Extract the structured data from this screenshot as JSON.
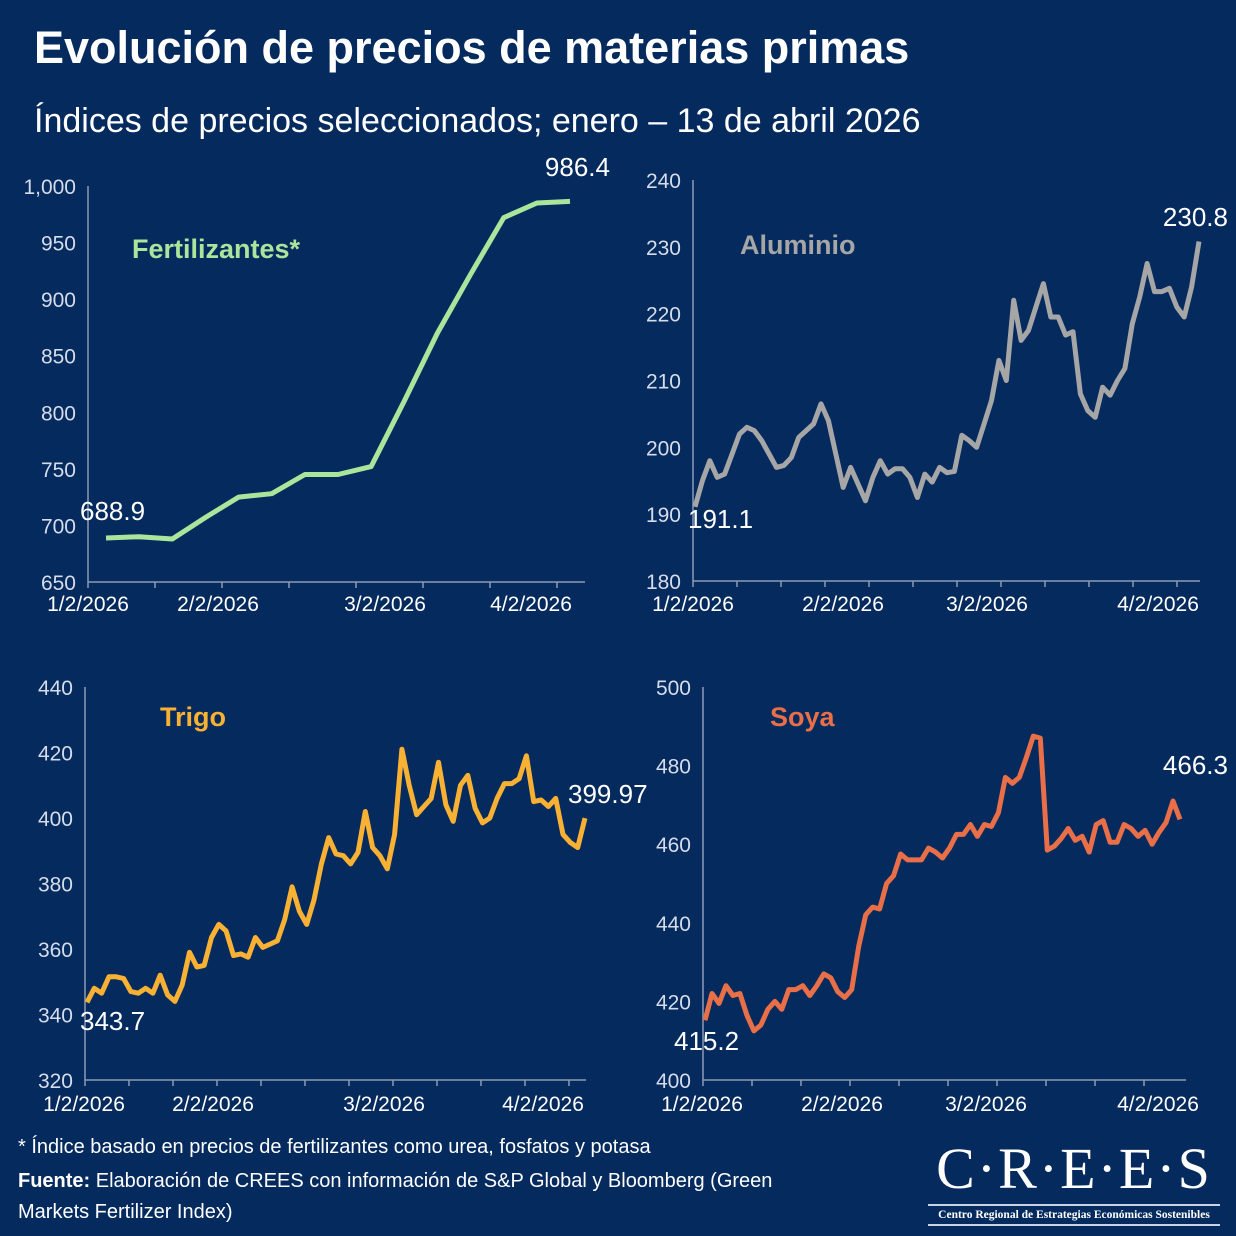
{
  "title": "Evolución de precios de materias primas",
  "subtitle": "Índices de precios seleccionados; enero – 13 de abril 2026",
  "footnote": "* Índice basado en precios de fertilizantes como urea, fosfatos y potasa",
  "source_label": "Fuente:",
  "source_text": " Elaboración de CREES con información de S&P Global y Bloomberg (Green Markets Fertilizer Index)",
  "logo": {
    "main": "C·R·E·E·S",
    "sub": "Centro Regional de Estrategias Económicas Sostenibles"
  },
  "chart_data": [
    {
      "type": "line",
      "title": "Fertilizantes*",
      "color": "#a9e69b",
      "ylim": [
        650,
        1000
      ],
      "yticks": [
        "650",
        "700",
        "750",
        "800",
        "850",
        "900",
        "950",
        "1,000"
      ],
      "xticks": [
        "1/2/2026",
        "2/2/2026",
        "3/2/2026",
        "4/2/2026"
      ],
      "first_label": "688.9",
      "last_label": "986.4",
      "x": [
        "1/5/2026",
        "1/12/2026",
        "1/19/2026",
        "1/26/2026",
        "2/2/2026",
        "2/9/2026",
        "2/16/2026",
        "2/23/2026",
        "3/2/2026",
        "3/9/2026",
        "3/16/2026",
        "3/23/2026",
        "3/30/2026",
        "4/6/2026",
        "4/13/2026"
      ],
      "values": [
        688.9,
        690,
        688,
        707,
        725,
        728,
        745,
        745,
        752,
        810,
        870,
        922,
        972,
        985,
        986.4
      ]
    },
    {
      "type": "line",
      "title": "Aluminio",
      "color": "#a6a6a6",
      "ylim": [
        180,
        240
      ],
      "yticks": [
        "180",
        "190",
        "200",
        "210",
        "220",
        "230",
        "240"
      ],
      "xticks": [
        "1/2/2026",
        "2/2/2026",
        "3/2/2026",
        "4/2/2026"
      ],
      "xlim": [
        "1/2/2026",
        "4/13/2026"
      ],
      "first_label": "191.1",
      "last_label": "230.8",
      "values": [
        191.1,
        195,
        198,
        195.5,
        196,
        199,
        202,
        203,
        202.5,
        201,
        199,
        197,
        197.3,
        198.5,
        201.5,
        202.5,
        203.5,
        206.5,
        204,
        199,
        194,
        197,
        194.5,
        192,
        195.5,
        198,
        196,
        196.8,
        196.8,
        195.5,
        192.5,
        196,
        194.8,
        197,
        196.2,
        196.4,
        201.8,
        201,
        200,
        203.5,
        207,
        213,
        210,
        222,
        216,
        217.5,
        221,
        224.5,
        219.5,
        219.5,
        216.8,
        217.3,
        208,
        205.5,
        204.5,
        209,
        207.8,
        210,
        211.8,
        218.5,
        222.5,
        227.5,
        223.3,
        223.3,
        223.8,
        221,
        219.5,
        224,
        230.8
      ]
    },
    {
      "type": "line",
      "title": "Trigo",
      "color": "#f8b133",
      "ylim": [
        320,
        440
      ],
      "yticks": [
        "320",
        "340",
        "360",
        "380",
        "400",
        "420",
        "440"
      ],
      "xticks": [
        "1/2/2026",
        "2/2/2026",
        "3/2/2026",
        "4/2/2026"
      ],
      "xlim": [
        "1/2/2026",
        "4/13/2026"
      ],
      "first_label": "343.7",
      "last_label": "399.97",
      "values": [
        343.7,
        348,
        346.5,
        351.5,
        351.5,
        351,
        347,
        346.5,
        348,
        346.5,
        352,
        346,
        344,
        349,
        359,
        354.5,
        355,
        363.5,
        367.5,
        365.5,
        358,
        358.5,
        357.5,
        363.5,
        360.5,
        361.5,
        362.5,
        369,
        379,
        371.5,
        367.5,
        375,
        386,
        394,
        389,
        388.5,
        386,
        389.5,
        402,
        391,
        388.5,
        384.5,
        395,
        421,
        410,
        401,
        403.5,
        406,
        417,
        404,
        399,
        410,
        413,
        403,
        398.5,
        400,
        406,
        410.5,
        410.5,
        412,
        419,
        405,
        405.5,
        403.5,
        406,
        395,
        392.5,
        391,
        399.97
      ]
    },
    {
      "type": "line",
      "title": "Soya",
      "color": "#e86f47",
      "ylim": [
        400,
        500
      ],
      "yticks": [
        "400",
        "420",
        "440",
        "460",
        "480",
        "500"
      ],
      "xticks": [
        "1/2/2026",
        "2/2/2026",
        "3/2/2026",
        "4/2/2026"
      ],
      "xlim": [
        "1/2/2026",
        "4/13/2026"
      ],
      "first_label": "415.2",
      "last_label": "466.3",
      "values": [
        415.2,
        422,
        419.5,
        424,
        421.5,
        422,
        416.5,
        412.5,
        414,
        418,
        420,
        418,
        423,
        423,
        424,
        421.5,
        424,
        427,
        426,
        422.5,
        421,
        423,
        434,
        442,
        444,
        443.5,
        450,
        452,
        457.5,
        456,
        456,
        456,
        459,
        458,
        456.5,
        459,
        462.5,
        462.5,
        465,
        462,
        465,
        464.5,
        468,
        477,
        475.5,
        477,
        482,
        487.5,
        487,
        458.5,
        459.5,
        461.5,
        464,
        461,
        462,
        458,
        465,
        466,
        460.5,
        460.5,
        465,
        464,
        462,
        463.5,
        460,
        463,
        465.5,
        471,
        466.3
      ]
    }
  ]
}
